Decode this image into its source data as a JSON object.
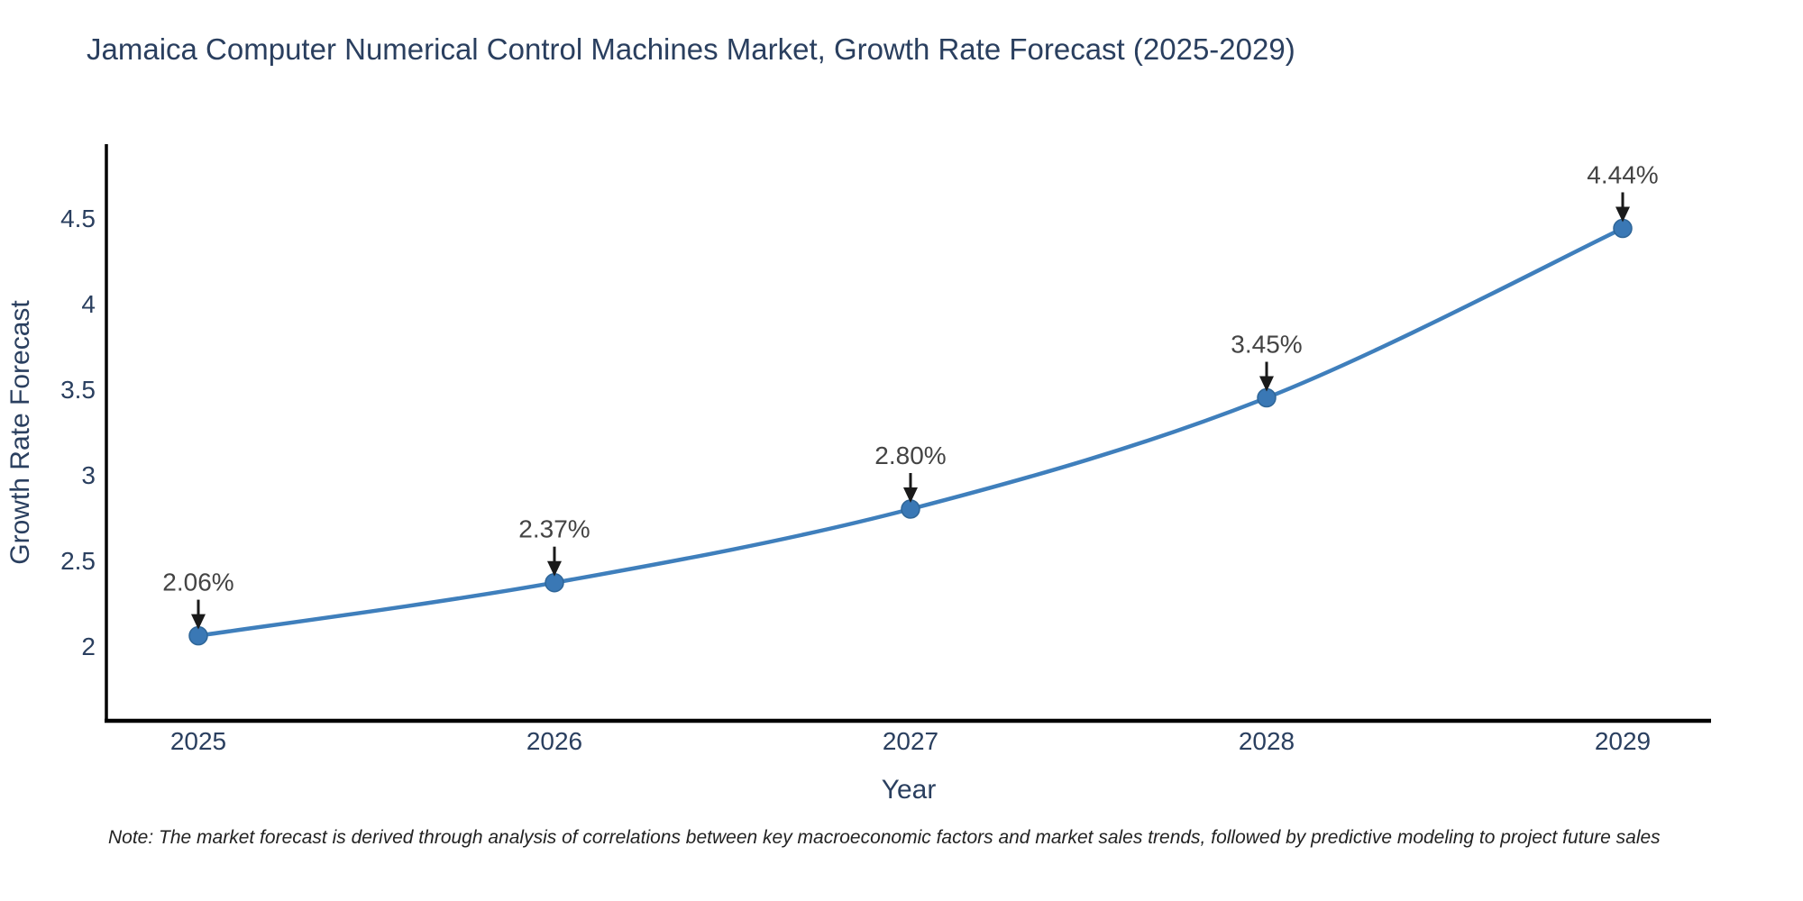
{
  "title": "Jamaica Computer Numerical Control Machines Market, Growth Rate Forecast (2025-2029)",
  "note": "Note: The market forecast is derived through analysis of correlations between key macroeconomic factors and market sales trends, followed by predictive modeling to project future sales",
  "chart_data": {
    "type": "line",
    "x": [
      "2025",
      "2026",
      "2027",
      "2028",
      "2029"
    ],
    "values": [
      2.06,
      2.37,
      2.8,
      3.45,
      4.44
    ],
    "data_labels": [
      "2.06%",
      "2.37%",
      "2.80%",
      "3.45%",
      "4.44%"
    ],
    "title": "Jamaica Computer Numerical Control Machines Market, Growth Rate Forecast (2025-2029)",
    "xlabel": "Year",
    "ylabel": "Growth Rate Forecast",
    "yticks": [
      2,
      2.5,
      3,
      3.5,
      4,
      4.5
    ],
    "ytick_labels": [
      "2",
      "2.5",
      "3",
      "3.5",
      "4",
      "4.5"
    ],
    "ylim": [
      1.563,
      4.932
    ],
    "grid": false,
    "legend": "none",
    "line_shape": "spline",
    "colors": {
      "line": "#3f7fbc",
      "marker": "#3a78b5",
      "marker_edge": "#2f6698",
      "axis": "#000000",
      "tick_label": "#2a3f5f",
      "annotation_text": "#444444",
      "annotation_arrow": "#1a1a1a",
      "title": "#2a3f5f"
    }
  }
}
